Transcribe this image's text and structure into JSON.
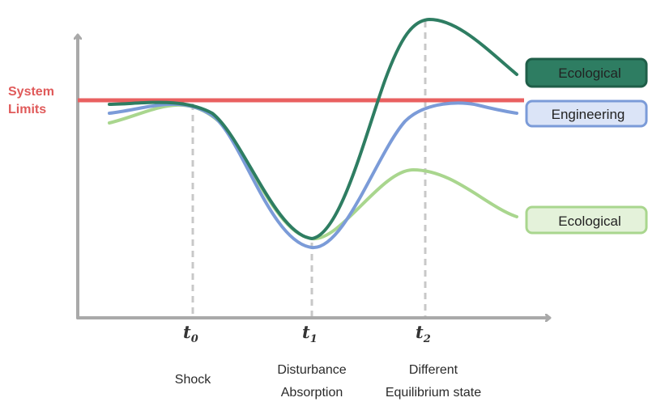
{
  "system_limits": {
    "line1": "System",
    "line2": "Limits",
    "color": "#e96060"
  },
  "time_points": [
    {
      "symbol": "t",
      "subscript": "0",
      "caption_lines": [
        "Shock"
      ]
    },
    {
      "symbol": "t",
      "subscript": "1",
      "caption_lines": [
        "Disturbance",
        "Absorption"
      ]
    },
    {
      "symbol": "t",
      "subscript": "2",
      "caption_lines": [
        "Different",
        "Equilibrium state"
      ]
    }
  ],
  "legend": [
    {
      "label": "Ecological",
      "line_color": "#2e7d62",
      "fill": "#2e7d62",
      "border": "#1f5e48"
    },
    {
      "label": "Engineering",
      "line_color": "#7b9bd8",
      "fill": "#dbe4f7",
      "border": "#7b9bd8"
    },
    {
      "label": "Ecological",
      "line_color": "#a9d68e",
      "fill": "#e4f2da",
      "border": "#a9d68e"
    }
  ],
  "colors": {
    "axis": "#a9a9a9",
    "guide": "#c8c8c8"
  }
}
